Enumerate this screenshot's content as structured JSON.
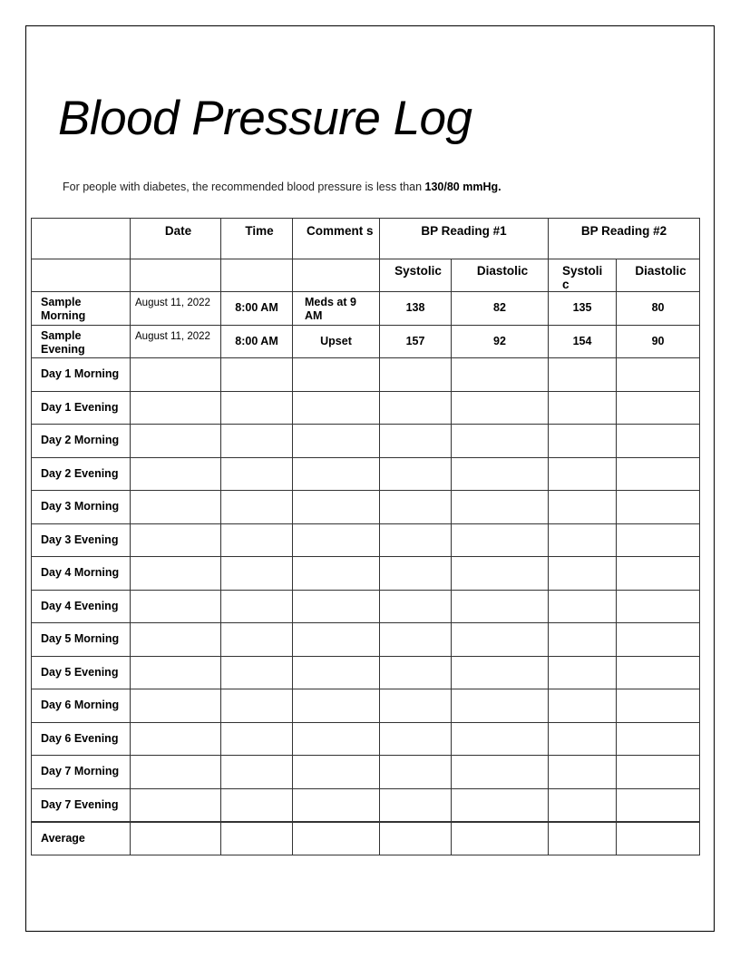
{
  "title": "Blood Pressure Log",
  "subtitle": {
    "text": "For people with diabetes, the recommended blood pressure is less than ",
    "emphasis": "130/80 mmHg."
  },
  "table": {
    "headers": [
      "",
      "Date",
      "Time",
      "Comment s",
      "BP Reading #1",
      "BP Reading #2"
    ],
    "subheaders": [
      "Systolic",
      "Diastolic",
      "Systoli c",
      "Diastolic"
    ],
    "rows": [
      {
        "label": "Sample Morning",
        "date": "August 11, 2022",
        "time": "8:00 AM",
        "comments": "Meds at 9 AM",
        "sys1": "138",
        "dia1": "82",
        "sys2": "135",
        "dia2": "80"
      },
      {
        "label": "Sample Evening",
        "date": "August 11, 2022",
        "time": "8:00 AM",
        "comments": "Upset",
        "sys1": "157",
        "dia1": "92",
        "sys2": "154",
        "dia2": "90"
      },
      {
        "label": "Day 1 Morning"
      },
      {
        "label": "Day 1 Evening"
      },
      {
        "label": "Day 2 Morning"
      },
      {
        "label": "Day 2 Evening"
      },
      {
        "label": "Day 3 Morning"
      },
      {
        "label": "Day 3 Evening"
      },
      {
        "label": "Day 4 Morning"
      },
      {
        "label": "Day 4 Evening"
      },
      {
        "label": "Day 5 Morning"
      },
      {
        "label": "Day 5 Evening"
      },
      {
        "label": "Day 6 Morning"
      },
      {
        "label": "Day 6 Evening"
      },
      {
        "label": "Day 7 Morning"
      },
      {
        "label": "Day 7 Evening"
      },
      {
        "label": "Average"
      }
    ]
  }
}
